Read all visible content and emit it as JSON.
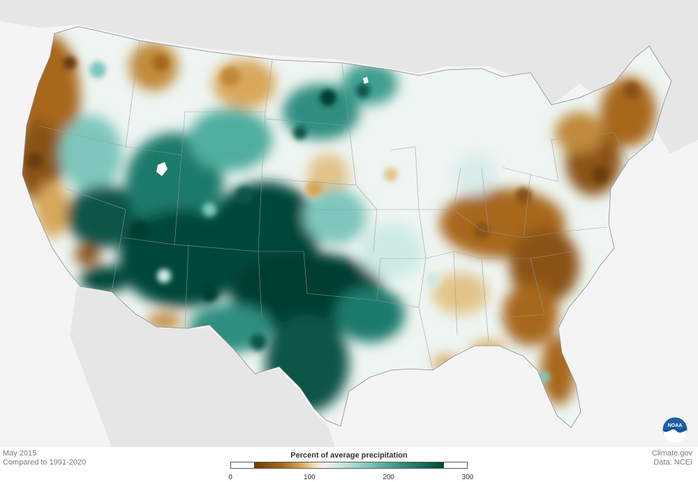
{
  "map": {
    "period": "May 2015",
    "baseline": "Compared to 1991-2020",
    "source": "Climate.gov",
    "data_credit": "Data: NCEI",
    "logo_text": "NOAA"
  },
  "legend": {
    "title": "Percent of average precipitation",
    "min": 0,
    "max": 300,
    "ticks": [
      "0",
      "100",
      "200",
      "300"
    ],
    "colors": [
      "#6b3c08",
      "#a8671c",
      "#d8a75a",
      "#efdcb0",
      "#f7f3e8",
      "#cdeae6",
      "#7fc7bd",
      "#2f8f80",
      "#00473a"
    ]
  },
  "colors": {
    "land_background": "#f4f4f4",
    "water": "#e9e9e9",
    "dry": "#b77a2a",
    "very_dry": "#8a5313",
    "near_normal": "#eef5f2",
    "wet": "#66bbb0",
    "very_wet": "#0a5548",
    "extreme_wet": "#003d32",
    "state_lines": "#9a9a9a"
  }
}
